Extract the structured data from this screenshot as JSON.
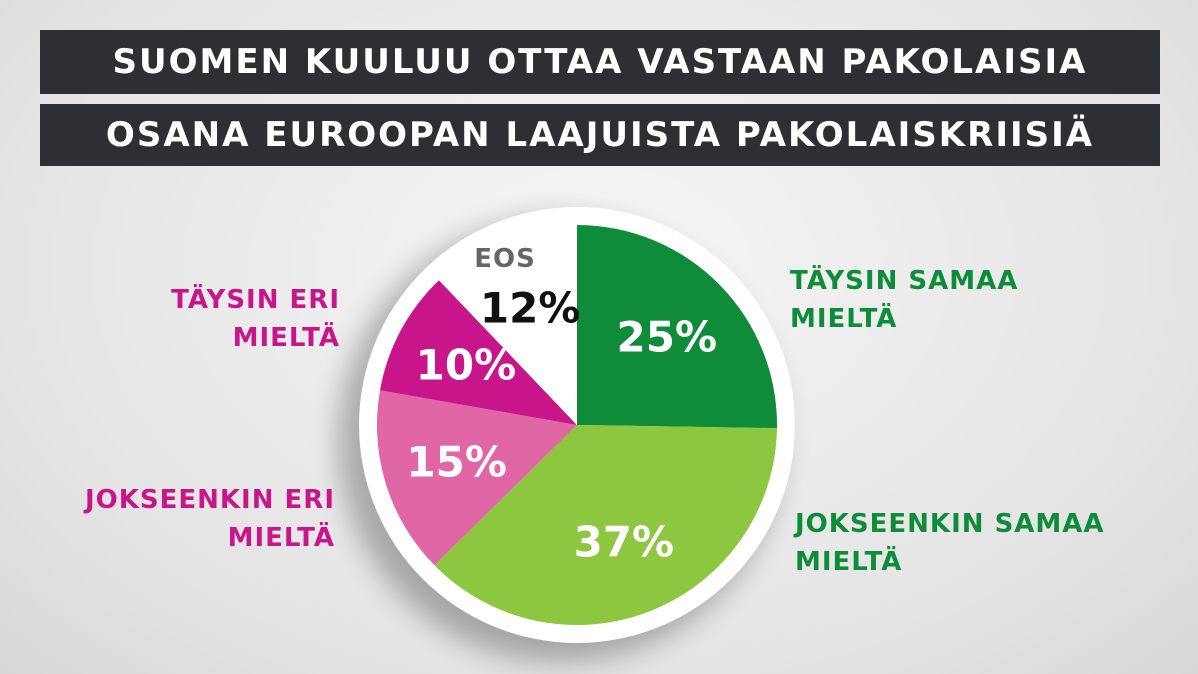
{
  "chart_data": {
    "type": "pie",
    "title": [
      "SUOMEN KUULUU OTTAA VASTAAN PAKOLAISIA",
      "OSANA EUROOPAN LAAJUISTA PAKOLAISKRIISIÄ"
    ],
    "categories": [
      "TÄYSIN SAMAA MIELTÄ",
      "JOKSEENKIN SAMAA MIELTÄ",
      "JOKSEENKIN ERI MIELTÄ",
      "TÄYSIN ERI MIELTÄ",
      "EOS"
    ],
    "values": [
      25,
      37,
      15,
      10,
      12
    ],
    "value_labels": [
      "25%",
      "37%",
      "15%",
      "10%",
      "12%"
    ],
    "colors": [
      "#0e8c3a",
      "#8dc63f",
      "#e066a6",
      "#c8168a",
      "#ffffff"
    ]
  }
}
